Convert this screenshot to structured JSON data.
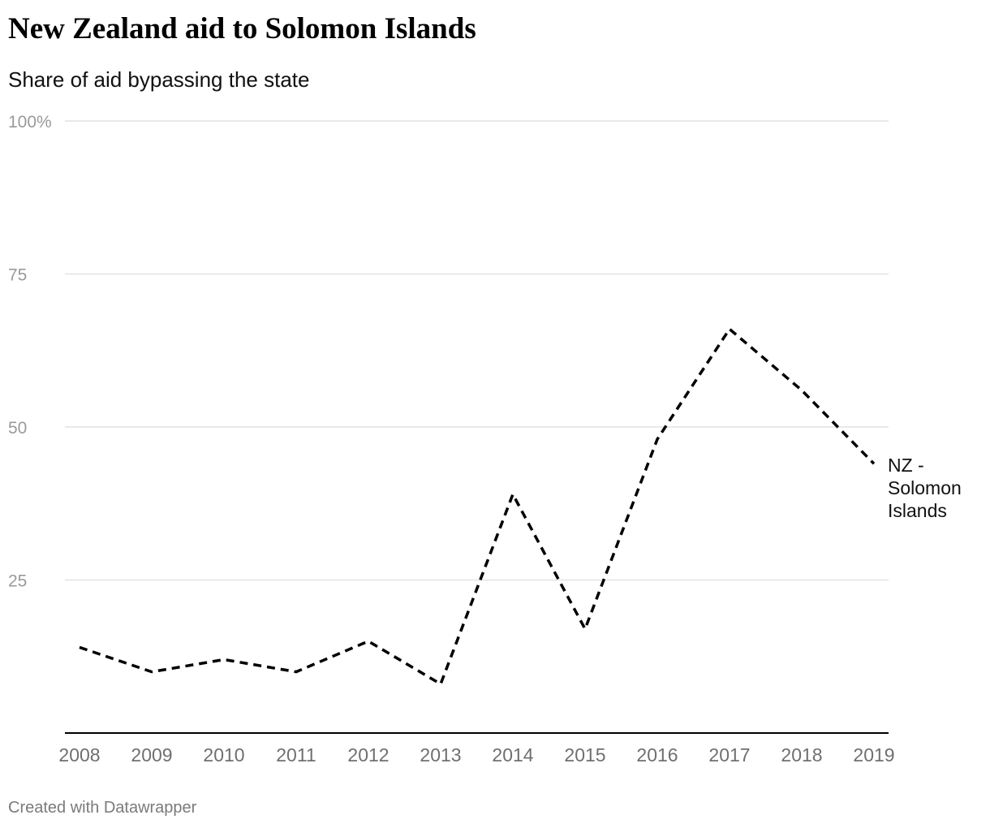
{
  "title": "New Zealand aid to Solomon Islands",
  "subtitle": "Share of aid bypassing the state",
  "footer": "Created with Datawrapper",
  "colors": {
    "line": "#000000",
    "grid": "#e2e2e2",
    "axis": "#000000"
  },
  "chart_data": {
    "type": "line",
    "title": "New Zealand aid to Solomon Islands",
    "subtitle": "Share of aid bypassing the state",
    "x": [
      2008,
      2009,
      2010,
      2011,
      2012,
      2013,
      2014,
      2015,
      2016,
      2017,
      2018,
      2019
    ],
    "series": [
      {
        "name": "NZ - Solomon Islands",
        "label_lines": [
          "NZ -",
          "Solomon",
          "Islands"
        ],
        "style": "dashed",
        "values": [
          14,
          10,
          12,
          10,
          15,
          8,
          39,
          17,
          48,
          66,
          56,
          44
        ]
      }
    ],
    "y_ticks": [
      25,
      50,
      75,
      100
    ],
    "y_tick_labels": [
      "25",
      "50",
      "75",
      "100%"
    ],
    "x_tick_labels": [
      "2008",
      "2009",
      "2010",
      "2011",
      "2012",
      "2013",
      "2014",
      "2015",
      "2016",
      "2017",
      "2018",
      "2019"
    ],
    "ylim": [
      0,
      100
    ],
    "xlim": [
      2008,
      2019
    ],
    "grid": true,
    "legend": "inline-right"
  }
}
